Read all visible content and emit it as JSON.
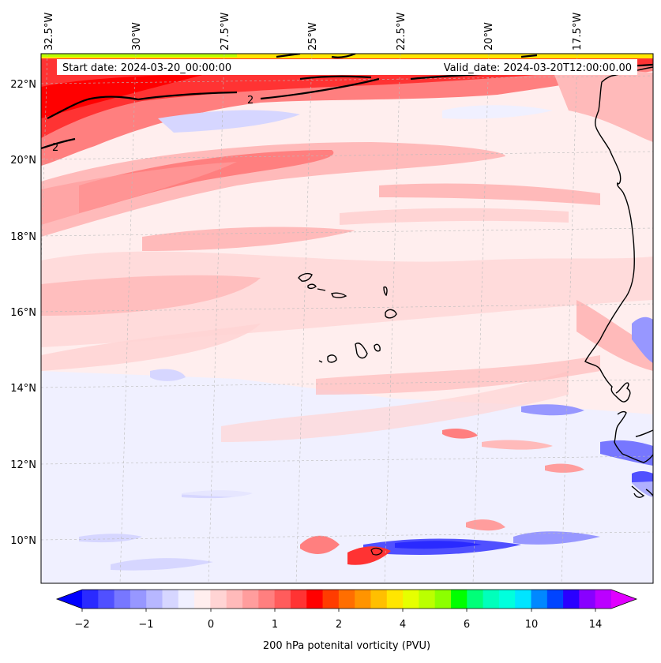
{
  "map": {
    "start_date": "Start date: 2024-03-20_00:00:00",
    "valid_date": "Valid_date: 2024-03-20T12:00:00.00",
    "longitudes": [
      "32.5°W",
      "30°W",
      "27.5°W",
      "25°W",
      "22.5°W",
      "20°W",
      "17.5°W"
    ],
    "latitudes": [
      "22°N",
      "20°N",
      "18°N",
      "16°N",
      "14°N",
      "12°N",
      "10°N"
    ],
    "contour_labels": [
      "2",
      "2"
    ]
  },
  "colorbar": {
    "ticks": [
      "−2",
      "−1",
      "0",
      "1",
      "2",
      "4",
      "6",
      "10",
      "14"
    ],
    "title": "200 hPa potenital vorticity (PVU)",
    "colors": [
      "#0000ff",
      "#2a2aff",
      "#5050ff",
      "#7777ff",
      "#9797ff",
      "#b7b7ff",
      "#d6d6ff",
      "#f0f0ff",
      "#ffeeee",
      "#ffd4d4",
      "#ffbaba",
      "#ff9d9d",
      "#ff7f7f",
      "#ff5c5c",
      "#ff3333",
      "#ff0000",
      "#ff3c00",
      "#ff6e00",
      "#ff9400",
      "#ffbf00",
      "#ffe600",
      "#e6ff00",
      "#bbff00",
      "#8cff00",
      "#00ff00",
      "#00ff78",
      "#00ffbb",
      "#00ffdd",
      "#00e5ff",
      "#0088ff",
      "#0044ff",
      "#2a00ff",
      "#8800ff",
      "#bb00ff",
      "#e000ff"
    ]
  }
}
